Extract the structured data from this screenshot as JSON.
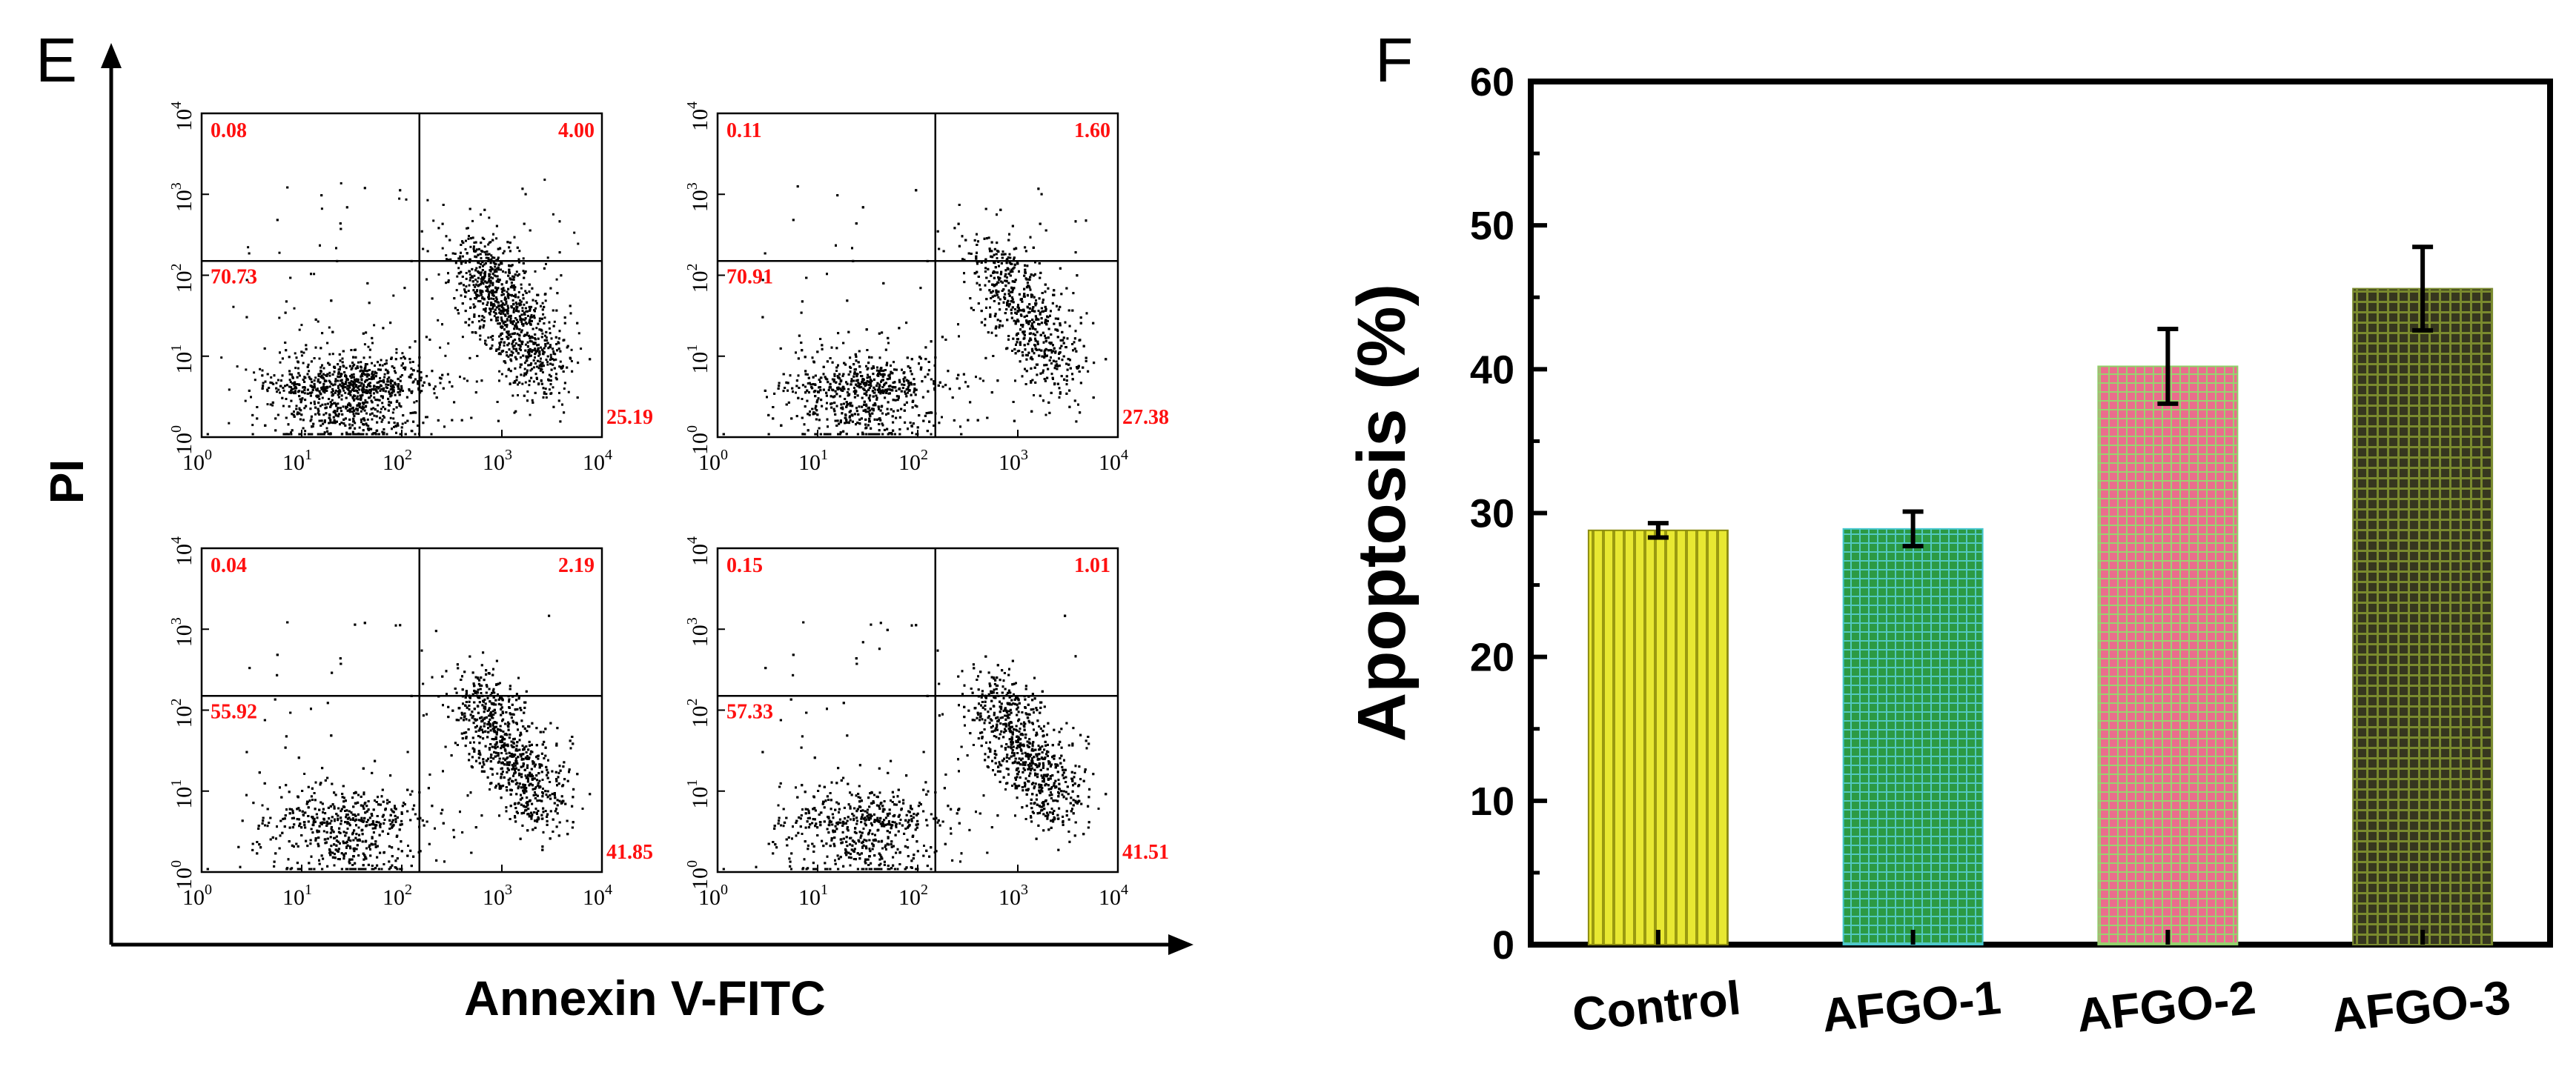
{
  "colors": {
    "axis": "#000000",
    "quadrant_text": "#ff1010",
    "dots": "#000000"
  },
  "chart_data": [
    {
      "type": "scatter",
      "panel": "E",
      "xlabel": "Annexin V-FITC",
      "ylabel": "PI",
      "scale": "log",
      "xlim": [
        1,
        10000
      ],
      "ylim": [
        1,
        10000
      ],
      "tick_exponents": [
        "0",
        "1",
        "2",
        "3",
        "4"
      ],
      "tick_base": "10",
      "subplots": [
        {
          "quadrants": {
            "upper_left": "0.08",
            "upper_right": "4.00",
            "lower_left": "70.73",
            "lower_right": "25.19"
          },
          "gate_x": 150,
          "gate_y": 150
        },
        {
          "quadrants": {
            "upper_left": "0.11",
            "upper_right": "1.60",
            "lower_left": "70.91",
            "lower_right": "27.38"
          },
          "gate_x": 150,
          "gate_y": 150
        },
        {
          "quadrants": {
            "upper_left": "0.04",
            "upper_right": "2.19",
            "lower_left": "55.92",
            "lower_right": "41.85"
          },
          "gate_x": 150,
          "gate_y": 150
        },
        {
          "quadrants": {
            "upper_left": "0.15",
            "upper_right": "1.01",
            "lower_left": "57.33",
            "lower_right": "41.51"
          },
          "gate_x": 150,
          "gate_y": 150
        }
      ]
    },
    {
      "type": "bar",
      "panel": "F",
      "categories": [
        "Control",
        "AFGO-1",
        "AFGO-2",
        "AFGO-3"
      ],
      "values": [
        28.8,
        28.9,
        40.2,
        45.6
      ],
      "errors": [
        0.5,
        1.2,
        2.6,
        2.9
      ],
      "ylabel": "Apoptosis (%)",
      "xlabel": "",
      "ylim": [
        0,
        60
      ],
      "yticks": [
        "0",
        "10",
        "20",
        "30",
        "40",
        "50",
        "60"
      ],
      "bar_styles": [
        {
          "fill": "#e8e832",
          "line": "#8a8a10",
          "pattern": "vertical"
        },
        {
          "fill": "#2fa84a",
          "line": "#46c8d0",
          "pattern": "grid"
        },
        {
          "fill": "#e86f8c",
          "line": "#8fd06a",
          "pattern": "grid"
        },
        {
          "fill": "#3a3a28",
          "line": "#7a8a30",
          "pattern": "grid"
        }
      ]
    }
  ]
}
